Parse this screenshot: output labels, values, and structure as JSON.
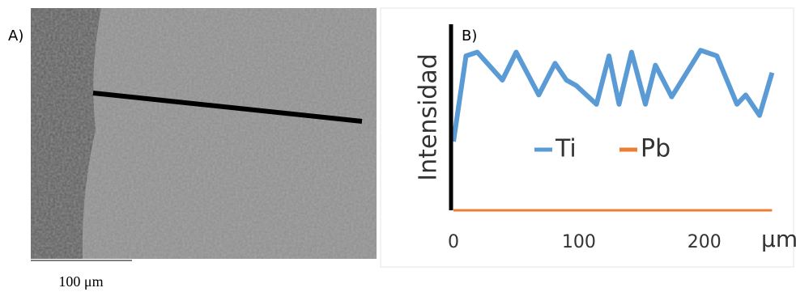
{
  "panel_a": {
    "label": "A)",
    "scale_bar": "100 μm"
  },
  "chart_data": {
    "type": "line",
    "label": "B)",
    "y_label": "Intensidad",
    "x_unit": "μm",
    "x": [
      0,
      10,
      19,
      39,
      50,
      68,
      81,
      90,
      98,
      114,
      124,
      132,
      142,
      153,
      161,
      174,
      197,
      210,
      226,
      233,
      244,
      254
    ],
    "series": [
      {
        "name": "Ti",
        "color": "#5b9bd5",
        "values": [
          37,
          83,
          85,
          70,
          85,
          62,
          79,
          70,
          67,
          57,
          83,
          57,
          85,
          57,
          78,
          61,
          86,
          83,
          57,
          62,
          51,
          74
        ]
      },
      {
        "name": "Pb",
        "color": "#ed7d31",
        "values": [
          0,
          0,
          0,
          0,
          0,
          0,
          0,
          0,
          0,
          0,
          0,
          0,
          0,
          0,
          0,
          0,
          0,
          0,
          0,
          0,
          0,
          0
        ]
      }
    ],
    "xlim": [
      0,
      255
    ],
    "ylim": [
      0,
      100
    ],
    "xticks": [
      0,
      100,
      200
    ],
    "legend": "center"
  }
}
